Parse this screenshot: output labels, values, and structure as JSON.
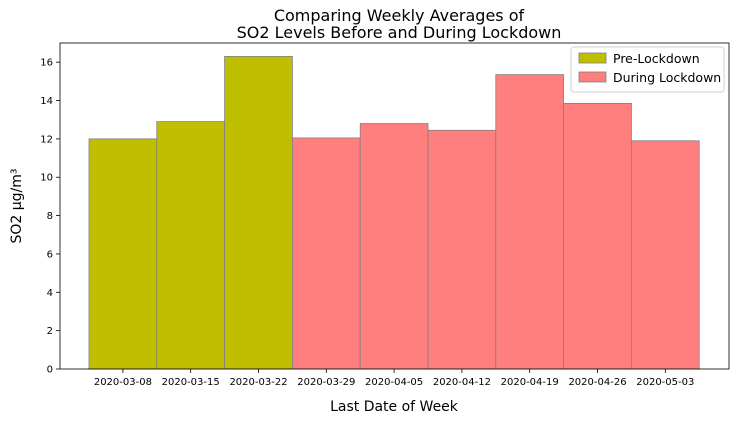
{
  "chart_data": {
    "type": "bar",
    "title_lines": [
      "Comparing Weekly Averages of",
      "SO2 Levels Before and During Lockdown"
    ],
    "xlabel": "Last Date of Week",
    "ylabel": "SO2 μg/m³",
    "ylim": [
      0,
      17
    ],
    "yticks": [
      0,
      2,
      4,
      6,
      8,
      10,
      12,
      14,
      16
    ],
    "categories": [
      "2020-03-08",
      "2020-03-15",
      "2020-03-22",
      "2020-03-29",
      "2020-04-05",
      "2020-04-12",
      "2020-04-19",
      "2020-04-26",
      "2020-05-03"
    ],
    "series": [
      {
        "name": "Pre-Lockdown",
        "color": "#bfbf00",
        "values": [
          12.0,
          12.9,
          16.3,
          null,
          null,
          null,
          null,
          null,
          null
        ]
      },
      {
        "name": "During Lockdown",
        "color": "#ff7f7f",
        "values": [
          null,
          null,
          null,
          12.05,
          12.8,
          12.45,
          15.35,
          13.85,
          11.9
        ]
      }
    ],
    "bar_edge_color": "#808080",
    "grid": false,
    "legend_position": "top-right"
  }
}
